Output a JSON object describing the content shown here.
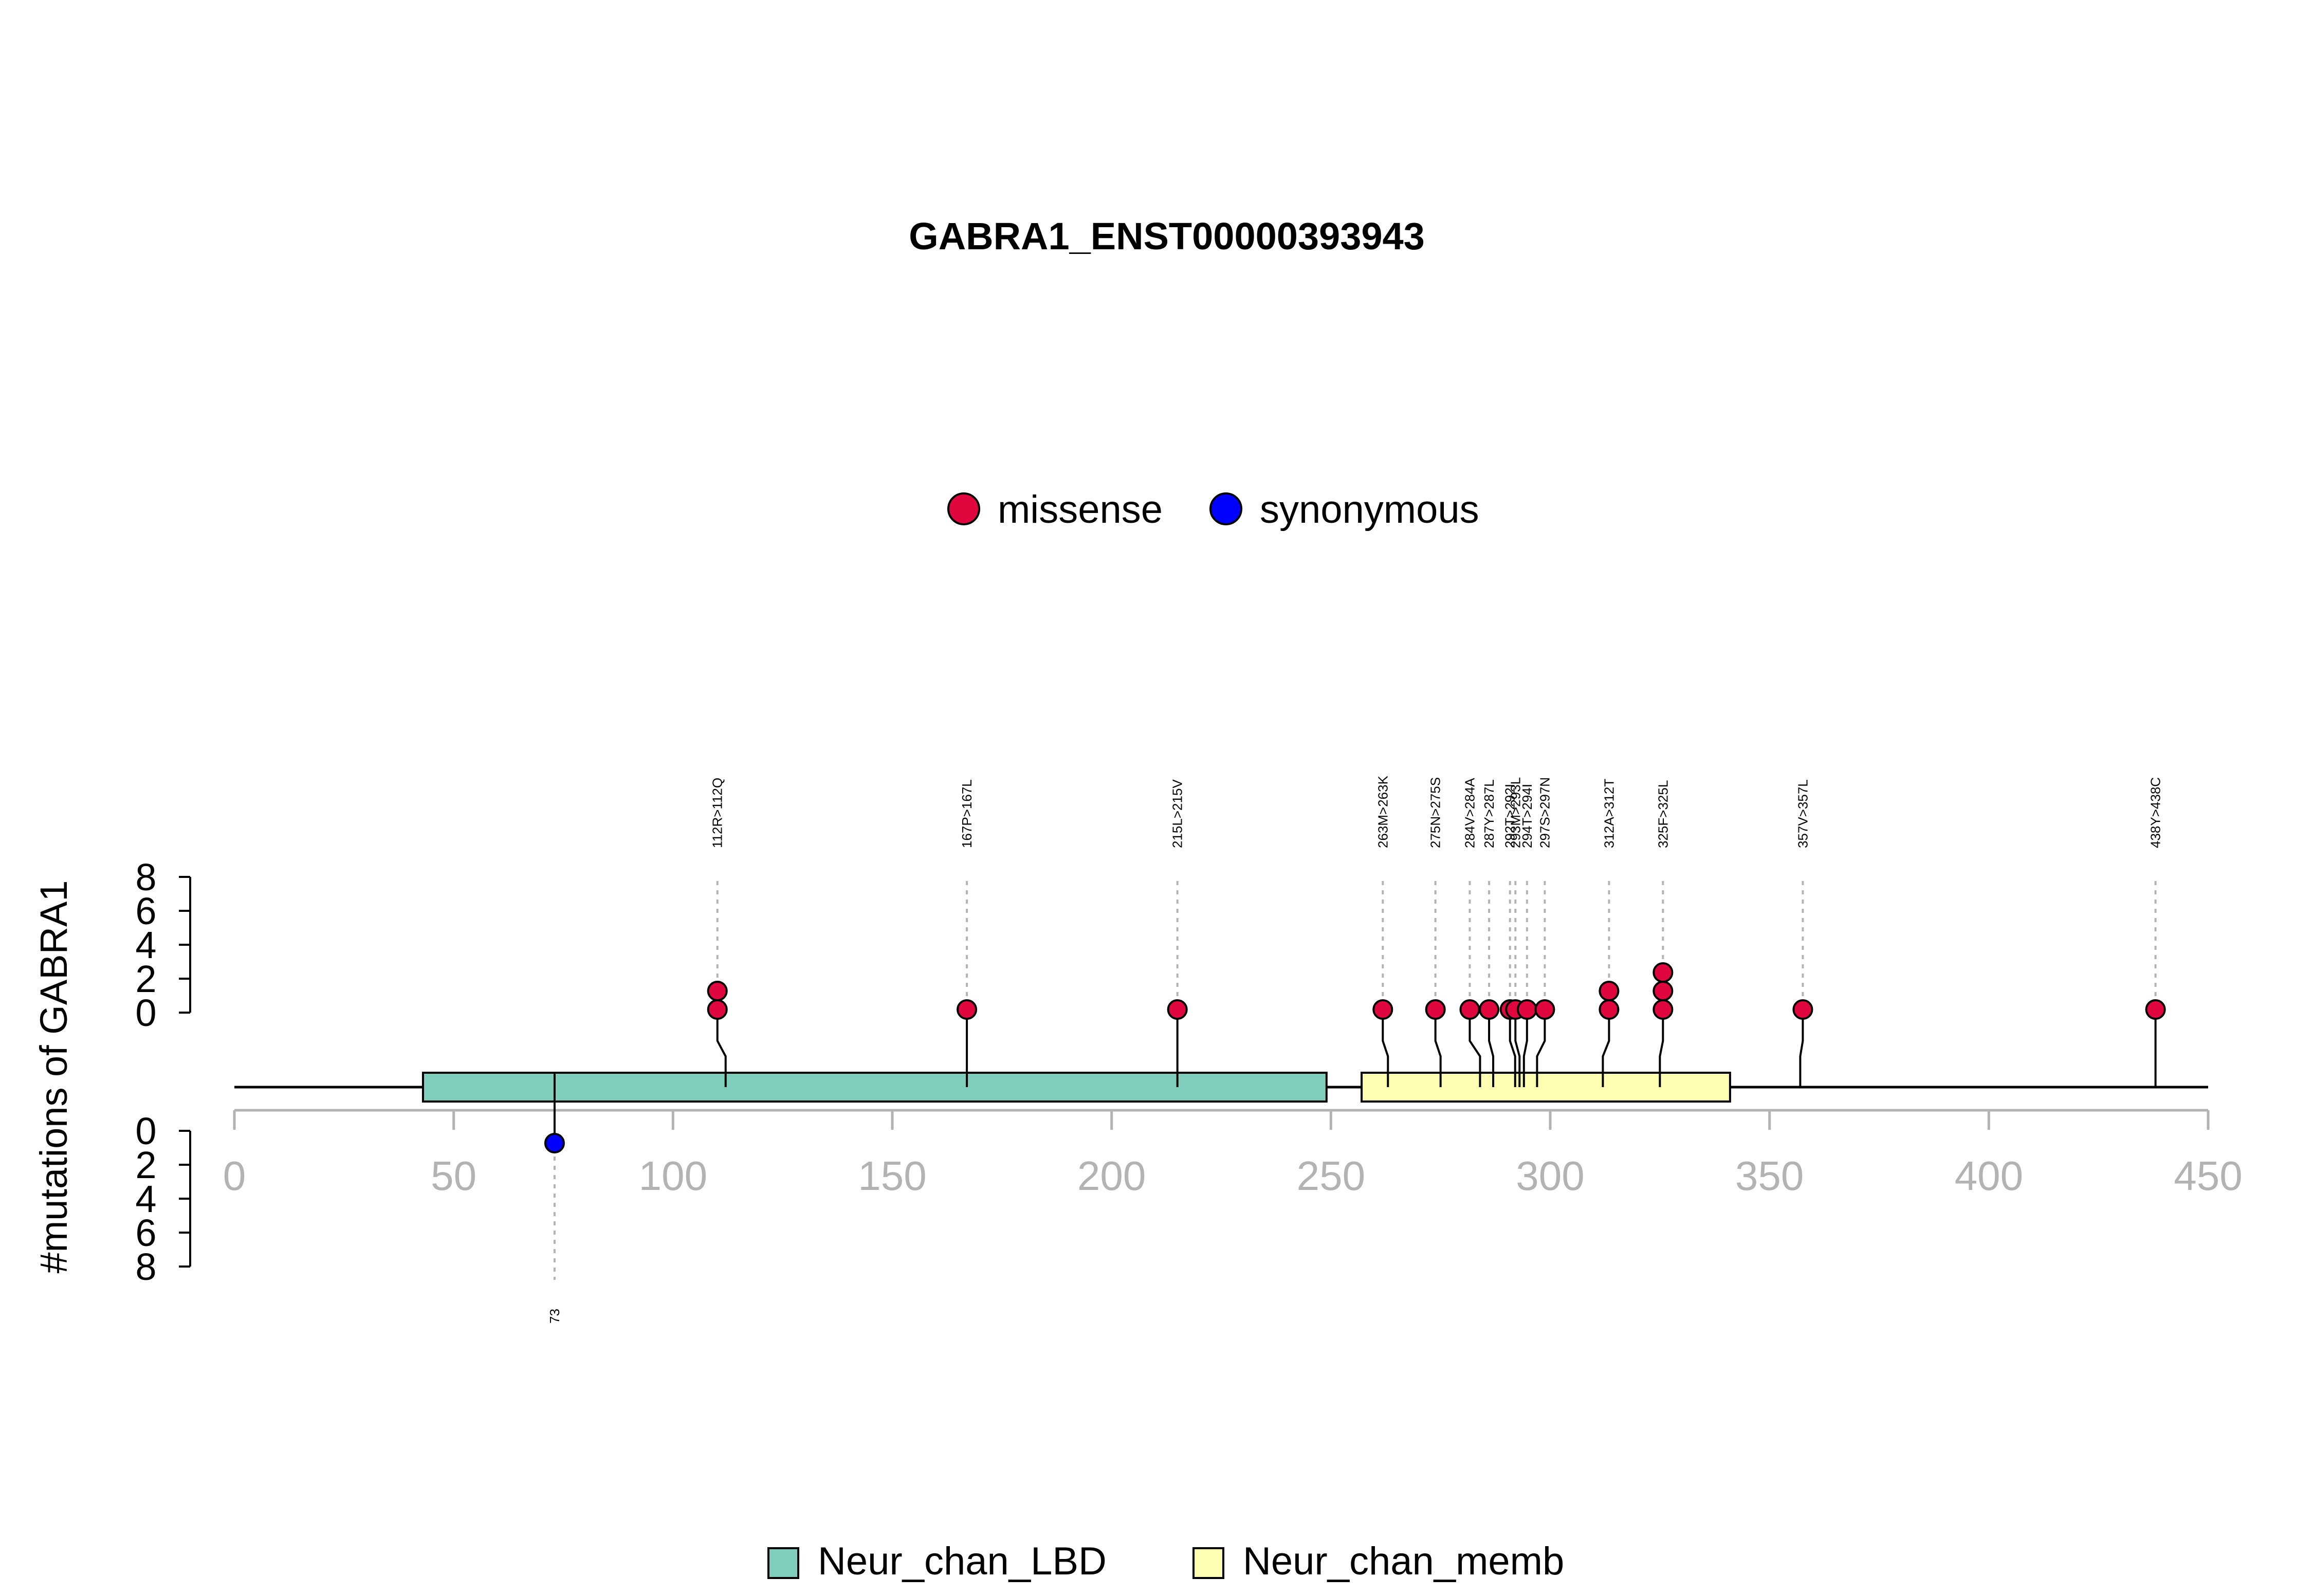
{
  "chart_data": {
    "type": "lollipop",
    "title": "GABRA1_ENST00000393943",
    "ylabel": "#mutations of GABRA1",
    "xlim": [
      0,
      450
    ],
    "x_ticks": [
      0,
      50,
      100,
      150,
      200,
      250,
      300,
      350,
      400,
      450
    ],
    "y_ticks_top": [
      0,
      2,
      4,
      6,
      8
    ],
    "y_ticks_bottom": [
      0,
      2,
      4,
      6,
      8
    ],
    "legend_top": [
      {
        "name": "missense",
        "color": "#E0073E"
      },
      {
        "name": "synonymous",
        "color": "#0000FF"
      }
    ],
    "legend_bottom": [
      {
        "name": "Neur_chan_LBD",
        "color": "#7FCDBB"
      },
      {
        "name": "Neur_chan_memb",
        "color": "#FFFFB3"
      }
    ],
    "domains": [
      {
        "name": "Neur_chan_LBD",
        "start": 43,
        "end": 249,
        "color": "#7FCDBB"
      },
      {
        "name": "Neur_chan_memb",
        "start": 257,
        "end": 341,
        "color": "#FFFFB3"
      }
    ],
    "mutations_top": [
      {
        "label": "112R>112Q",
        "pos": 112,
        "count": 2,
        "type": "missense"
      },
      {
        "label": "167P>167L",
        "pos": 167,
        "count": 1,
        "type": "missense"
      },
      {
        "label": "215L>215V",
        "pos": 215,
        "count": 1,
        "type": "missense"
      },
      {
        "label": "263M>263K",
        "pos": 263,
        "count": 1,
        "type": "missense"
      },
      {
        "label": "275N>275S",
        "pos": 275,
        "count": 1,
        "type": "missense"
      },
      {
        "label": "284V>284A",
        "pos": 284,
        "count": 1,
        "type": "missense"
      },
      {
        "label": "287Y>287L",
        "pos": 287,
        "count": 1,
        "type": "missense"
      },
      {
        "label": "292T>292I",
        "pos": 292,
        "count": 1,
        "type": "missense"
      },
      {
        "label": "293M>293L",
        "pos": 293,
        "count": 1,
        "type": "missense"
      },
      {
        "label": "294T>294I",
        "pos": 294,
        "count": 1,
        "type": "missense"
      },
      {
        "label": "297S>297N",
        "pos": 297,
        "count": 1,
        "type": "missense"
      },
      {
        "label": "312A>312T",
        "pos": 312,
        "count": 2,
        "type": "missense"
      },
      {
        "label": "325F>325L",
        "pos": 325,
        "count": 3,
        "type": "missense"
      },
      {
        "label": "357V>357L",
        "pos": 357,
        "count": 1,
        "type": "missense"
      },
      {
        "label": "438Y>438C",
        "pos": 438,
        "count": 1,
        "type": "missense"
      }
    ],
    "mutations_bottom": [
      {
        "label": "73",
        "pos": 73,
        "count": 1,
        "type": "synonymous"
      }
    ]
  }
}
